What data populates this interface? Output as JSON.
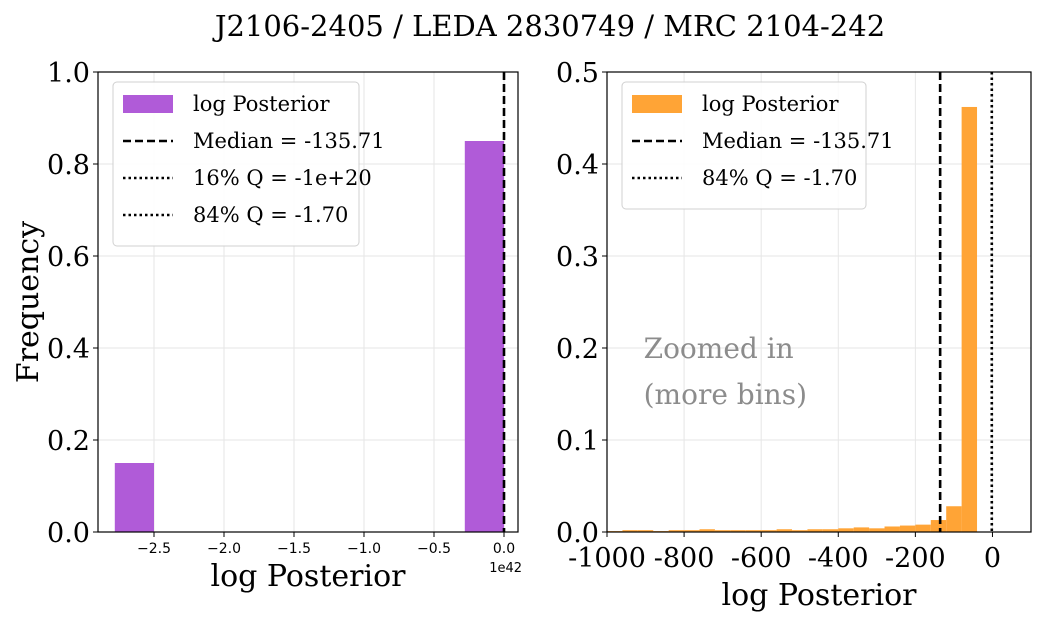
{
  "title": "J2106-2405 / LEDA 2830749 / MRC 2104-242",
  "colors": {
    "purple": "#b05bd8",
    "orange": "#ffa436",
    "annotation": "#8c8c8c"
  },
  "chart_data": [
    {
      "type": "bar",
      "panel": "left",
      "xlabel": "log Posterior",
      "ylabel": "Frequency",
      "x_offset_label": "1e42",
      "xlim": [
        -2.9,
        0.1
      ],
      "ylim": [
        0.0,
        1.0
      ],
      "xticks": [
        -2.5,
        -2.0,
        -1.5,
        -1.0,
        -0.5,
        0.0
      ],
      "xtick_labels": [
        "−2.5",
        "−2.0",
        "−1.5",
        "−1.0",
        "−0.5",
        "0.0"
      ],
      "yticks": [
        0.0,
        0.2,
        0.4,
        0.6,
        0.8,
        1.0
      ],
      "ytick_labels": [
        "0.0",
        "0.2",
        "0.4",
        "0.6",
        "0.8",
        "1.0"
      ],
      "grid": true,
      "bins": [
        {
          "x0": -2.78,
          "x1": -2.5,
          "value": 0.15
        },
        {
          "x0": -0.28,
          "x1": 0.0,
          "value": 0.85
        }
      ],
      "vlines": [
        {
          "x": 0.0,
          "style": "dashed"
        }
      ],
      "legend": {
        "placement": "upper-left",
        "entries": [
          {
            "label": "log Posterior",
            "kind": "patch"
          },
          {
            "label": "Median = -135.71",
            "kind": "dashed"
          },
          {
            "label": "16% Q = -1e+20",
            "kind": "dotted"
          },
          {
            "label": "84% Q = -1.70",
            "kind": "dotted"
          }
        ]
      }
    },
    {
      "type": "bar",
      "panel": "right",
      "xlabel": "log Posterior",
      "xlim": [
        -1000,
        100
      ],
      "ylim": [
        0.0,
        0.5
      ],
      "xticks": [
        -1000,
        -800,
        -600,
        -400,
        -200,
        0
      ],
      "xtick_labels": [
        "-1000",
        "-800",
        "-600",
        "-400",
        "-200",
        "0"
      ],
      "yticks": [
        0.0,
        0.1,
        0.2,
        0.3,
        0.4,
        0.5
      ],
      "ytick_labels": [
        "0.0",
        "0.1",
        "0.2",
        "0.3",
        "0.4",
        "0.5"
      ],
      "grid": true,
      "bin_edges": [
        -1000,
        -960,
        -920,
        -880,
        -840,
        -800,
        -760,
        -720,
        -680,
        -640,
        -600,
        -560,
        -520,
        -480,
        -440,
        -400,
        -360,
        -320,
        -280,
        -240,
        -200,
        -160,
        -120,
        -80,
        -40,
        0
      ],
      "values": [
        0.001,
        0.002,
        0.002,
        0.001,
        0.002,
        0.002,
        0.003,
        0.002,
        0.002,
        0.002,
        0.002,
        0.003,
        0.002,
        0.003,
        0.003,
        0.004,
        0.005,
        0.004,
        0.006,
        0.007,
        0.008,
        0.013,
        0.028,
        0.462,
        0.0
      ],
      "vlines": [
        {
          "x": -135.71,
          "style": "dashed"
        },
        {
          "x": -1.7,
          "style": "dotted"
        }
      ],
      "annotation": [
        "Zoomed in",
        "(more bins)"
      ],
      "legend": {
        "placement": "upper-left",
        "entries": [
          {
            "label": "log Posterior",
            "kind": "patch"
          },
          {
            "label": "Median = -135.71",
            "kind": "dashed"
          },
          {
            "label": "84% Q = -1.70",
            "kind": "dotted"
          }
        ]
      }
    }
  ]
}
